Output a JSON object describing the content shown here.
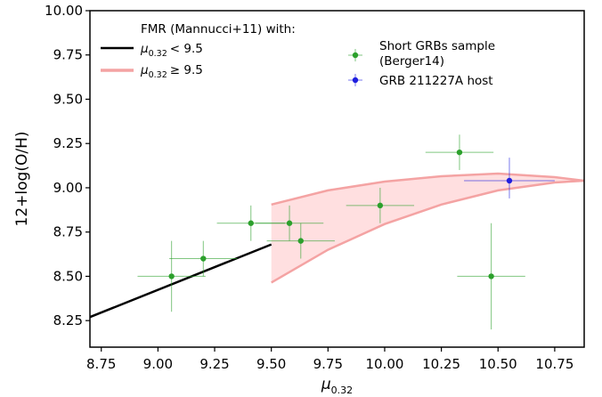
{
  "chart_data": {
    "type": "scatter",
    "xlabel": "μ",
    "xlabel_sub": "0.32",
    "ylabel": "12+log(O/H)",
    "xlim": [
      8.7,
      10.88
    ],
    "ylim": [
      8.1,
      10.0
    ],
    "xticks": [
      "8.75",
      "9.00",
      "9.25",
      "9.50",
      "9.75",
      "10.00",
      "10.25",
      "10.50",
      "10.75"
    ],
    "yticks": [
      "8.25",
      "8.50",
      "8.75",
      "9.00",
      "9.25",
      "9.50",
      "9.75",
      "10.00"
    ],
    "legend_left": {
      "title": "FMR (Mannucci+11) with:",
      "items": [
        {
          "prefix": "μ",
          "sub": "0.32",
          "cond": "< 9.5",
          "color": "#000000"
        },
        {
          "prefix": "μ",
          "sub": "0.32",
          "cond": "≥ 9.5",
          "color": "#f4a3a3"
        }
      ]
    },
    "legend_right": {
      "items": [
        {
          "label": "Short GRBs sample",
          "label2": "(Berger14)",
          "color": "#2ca02c"
        },
        {
          "label": "GRB 211227A host",
          "color": "#1f1fdf"
        }
      ]
    },
    "fmr_low": {
      "color": "#000000",
      "x": [
        8.7,
        9.5
      ],
      "y": [
        8.27,
        8.68
      ]
    },
    "fmr_high_band": {
      "color": "#f4a3a3",
      "fill": "#ffdfe0",
      "x": [
        9.5,
        9.75,
        10.0,
        10.25,
        10.5,
        10.75,
        10.88
      ],
      "upper": [
        8.905,
        8.985,
        9.035,
        9.065,
        9.08,
        9.06,
        9.04
      ],
      "lower": [
        8.465,
        8.65,
        8.795,
        8.905,
        8.985,
        9.03,
        9.04
      ]
    },
    "series": [
      {
        "name": "Short GRBs sample",
        "color": "#2ca02c",
        "points": [
          {
            "x": 9.06,
            "y": 8.5,
            "xerr": 0.15,
            "yerr_lo": 0.2,
            "yerr_hi": 0.2
          },
          {
            "x": 9.2,
            "y": 8.6,
            "xerr": 0.15,
            "yerr_lo": 0.1,
            "yerr_hi": 0.1
          },
          {
            "x": 9.41,
            "y": 8.8,
            "xerr": 0.15,
            "yerr_lo": 0.1,
            "yerr_hi": 0.1
          },
          {
            "x": 9.58,
            "y": 8.8,
            "xerr": 0.15,
            "yerr_lo": 0.1,
            "yerr_hi": 0.1
          },
          {
            "x": 9.63,
            "y": 8.7,
            "xerr": 0.15,
            "yerr_lo": 0.1,
            "yerr_hi": 0.1
          },
          {
            "x": 9.98,
            "y": 8.9,
            "xerr": 0.15,
            "yerr_lo": 0.1,
            "yerr_hi": 0.1
          },
          {
            "x": 10.33,
            "y": 9.2,
            "xerr": 0.15,
            "yerr_lo": 0.1,
            "yerr_hi": 0.1
          },
          {
            "x": 10.47,
            "y": 8.5,
            "xerr": 0.15,
            "yerr_lo": 0.3,
            "yerr_hi": 0.3
          }
        ]
      },
      {
        "name": "GRB 211227A host",
        "color": "#1f1fdf",
        "points": [
          {
            "x": 10.55,
            "y": 9.04,
            "xerr": 0.2,
            "yerr_lo": 0.1,
            "yerr_hi": 0.13
          }
        ]
      }
    ],
    "grid": false
  }
}
